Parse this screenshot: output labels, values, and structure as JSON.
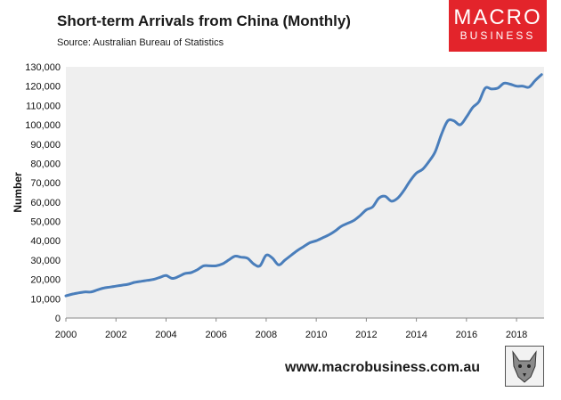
{
  "header": {
    "title": "Short-term Arrivals from China (Monthly)",
    "source": "Source: Australian Bureau of Statistics"
  },
  "logo": {
    "line1": "MACRO",
    "line2": "BUSINESS",
    "icon": "wolf-emblem-icon"
  },
  "footer": {
    "website": "www.macrobusiness.com.au"
  },
  "colors": {
    "line": "#4a7ebb",
    "plot_bg": "#efefef",
    "brand_red": "#e3242b"
  },
  "chart_data": {
    "type": "line",
    "title": "Short-term Arrivals from China (Monthly)",
    "xlabel": "",
    "ylabel": "Number",
    "xlim": [
      2000,
      2019.1
    ],
    "ylim": [
      0,
      130000
    ],
    "xticks": [
      2000,
      2002,
      2004,
      2006,
      2008,
      2010,
      2012,
      2014,
      2016,
      2018
    ],
    "xtick_labels": [
      "2000",
      "2002",
      "2004",
      "2006",
      "2008",
      "2010",
      "2012",
      "2014",
      "2016",
      "2018"
    ],
    "yticks": [
      0,
      10000,
      20000,
      30000,
      40000,
      50000,
      60000,
      70000,
      80000,
      90000,
      100000,
      110000,
      120000,
      130000
    ],
    "ytick_labels": [
      "0",
      "10,000",
      "20,000",
      "30,000",
      "40,000",
      "50,000",
      "60,000",
      "70,000",
      "80,000",
      "90,000",
      "100,000",
      "110,000",
      "120,000",
      "130,000"
    ],
    "grid": false,
    "legend": "none",
    "series": [
      {
        "name": "Short-term Arrivals from China",
        "x": [
          2000.0,
          2000.3,
          2000.5,
          2000.75,
          2001.0,
          2001.25,
          2001.5,
          2001.75,
          2002.0,
          2002.25,
          2002.5,
          2002.75,
          2003.0,
          2003.25,
          2003.5,
          2003.75,
          2004.0,
          2004.25,
          2004.5,
          2004.75,
          2005.0,
          2005.25,
          2005.5,
          2005.75,
          2006.0,
          2006.25,
          2006.5,
          2006.75,
          2007.0,
          2007.25,
          2007.5,
          2007.75,
          2008.0,
          2008.25,
          2008.5,
          2008.75,
          2009.0,
          2009.25,
          2009.5,
          2009.75,
          2010.0,
          2010.25,
          2010.5,
          2010.75,
          2011.0,
          2011.25,
          2011.5,
          2011.75,
          2012.0,
          2012.25,
          2012.5,
          2012.75,
          2013.0,
          2013.25,
          2013.5,
          2013.75,
          2014.0,
          2014.25,
          2014.5,
          2014.75,
          2015.0,
          2015.25,
          2015.5,
          2015.75,
          2016.0,
          2016.25,
          2016.5,
          2016.75,
          2017.0,
          2017.25,
          2017.5,
          2017.75,
          2018.0,
          2018.25,
          2018.5,
          2018.75,
          2019.0
        ],
        "y": [
          11500,
          12500,
          13000,
          13500,
          13500,
          14500,
          15500,
          16000,
          16500,
          17000,
          17500,
          18500,
          19000,
          19500,
          20000,
          21000,
          22000,
          20500,
          21500,
          23000,
          23500,
          25000,
          27000,
          27000,
          27000,
          28000,
          30000,
          32000,
          31500,
          31000,
          28000,
          27000,
          32500,
          31000,
          27500,
          30000,
          32500,
          35000,
          37000,
          39000,
          40000,
          41500,
          43000,
          45000,
          47500,
          49000,
          50500,
          53000,
          56000,
          57500,
          62000,
          63000,
          60500,
          62000,
          66000,
          71000,
          75000,
          77000,
          81000,
          86000,
          95000,
          102000,
          102000,
          100000,
          104000,
          109000,
          112000,
          119000,
          118500,
          119000,
          121500,
          121000,
          120000,
          120000,
          119500,
          123000,
          126000
        ]
      }
    ]
  }
}
